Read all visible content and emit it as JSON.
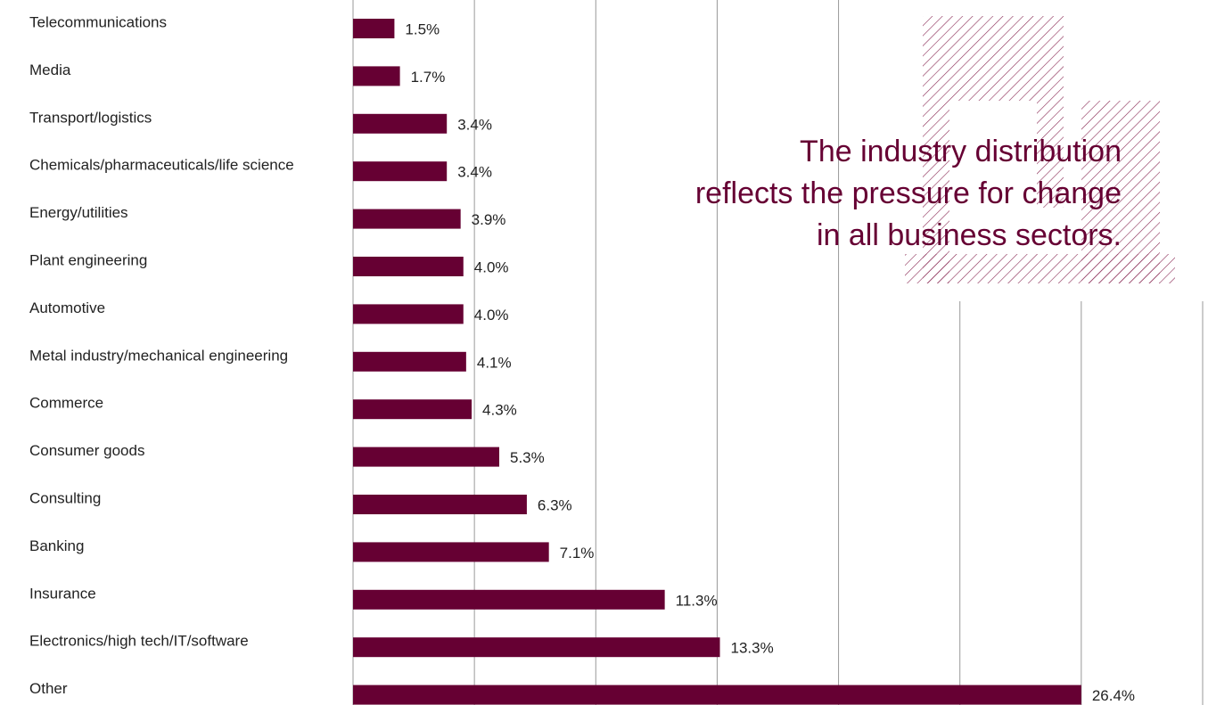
{
  "chart_data": {
    "type": "barh",
    "annotation": [
      "The industry distribution",
      "reflects the pressure for change",
      "in all business sectors."
    ],
    "categories": [
      "Telecommunications",
      "Media",
      "Transport/logistics",
      "Chemicals/pharmaceuticals/life science",
      "Energy/utilities",
      "Plant engineering",
      "Automotive",
      "Metal industry/mechanical engineering",
      "Commerce",
      "Consumer goods",
      "Consulting",
      "Banking",
      "Insurance",
      "Electronics/high tech/IT/software",
      "Other"
    ],
    "values": [
      1.5,
      1.7,
      3.4,
      3.4,
      3.9,
      4.0,
      4.0,
      4.1,
      4.3,
      5.3,
      6.3,
      7.1,
      11.3,
      13.3,
      26.4
    ],
    "value_labels": [
      "1.5%",
      "1.7%",
      "3.4%",
      "3.4%",
      "3.9%",
      "4.0%",
      "4.0%",
      "4.1%",
      "4.3%",
      "5.3%",
      "6.3%",
      "7.1%",
      "11.3%",
      "13.3%",
      "26.4%"
    ],
    "color": "#660033",
    "xlim": [
      0,
      30.8
    ],
    "xticks": [
      0,
      4.4,
      8.8,
      13.2,
      17.6,
      22,
      26.4,
      30.8
    ],
    "grid": true
  }
}
